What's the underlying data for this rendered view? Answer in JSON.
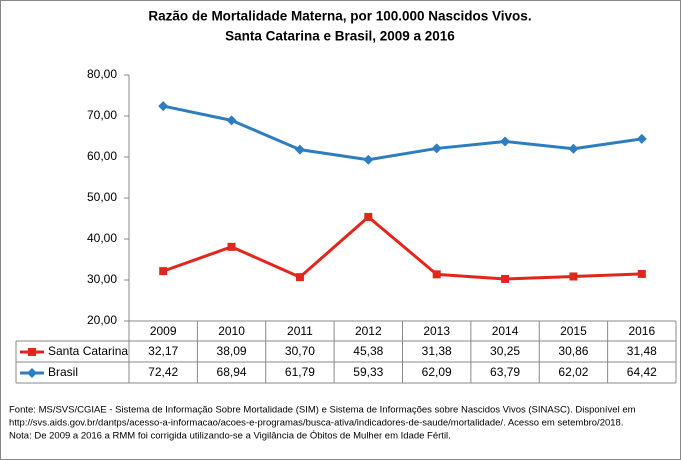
{
  "chart_data": {
    "type": "line",
    "title": "Razão de Mortalidade Materna, por 100.000 Nascidos Vivos.",
    "subtitle": "Santa Catarina e Brasil, 2009 a 2016",
    "categories": [
      "2009",
      "2010",
      "2011",
      "2012",
      "2013",
      "2014",
      "2015",
      "2016"
    ],
    "series": [
      {
        "name": "Santa Catarina",
        "color": "#e3261c",
        "marker": "square",
        "values": [
          32.17,
          38.09,
          30.7,
          45.38,
          31.38,
          30.25,
          30.86,
          31.48
        ],
        "value_labels": [
          "32,17",
          "38,09",
          "30,70",
          "45,38",
          "31,38",
          "30,25",
          "30,86",
          "31,48"
        ]
      },
      {
        "name": "Brasil",
        "color": "#2e7dc0",
        "marker": "diamond",
        "values": [
          72.42,
          68.94,
          61.79,
          59.33,
          62.09,
          63.79,
          62.02,
          64.42
        ],
        "value_labels": [
          "72,42",
          "68,94",
          "61,79",
          "59,33",
          "62,09",
          "63,79",
          "62,02",
          "64,42"
        ]
      }
    ],
    "ylim": [
      20,
      80
    ],
    "yticks": [
      {
        "value": 20,
        "label": "20,00"
      },
      {
        "value": 30,
        "label": "30,00"
      },
      {
        "value": 40,
        "label": "40,00"
      },
      {
        "value": 50,
        "label": "50,00"
      },
      {
        "value": 60,
        "label": "60,00"
      },
      {
        "value": 70,
        "label": "70,00"
      },
      {
        "value": 80,
        "label": "80,00"
      }
    ],
    "grid": false,
    "notes": [
      "Fonte: MS/SVS/CGIAE - Sistema de Informação Sobre Mortalidade (SIM) e Sistema de Informações sobre Nascidos Vivos (SINASC). Disponível em",
      "http://svs.aids.gov.br/dantps/acesso-a-informacao/acoes-e-programas/busca-ativa/indicadores-de-saude/mortalidade/. Acesso em setembro/2018.",
      "Nota: De 2009 a 2016 a RMM foi corrigida utilizando-se a Vigilância de Óbitos de Mulher em Idade Fértil."
    ]
  }
}
